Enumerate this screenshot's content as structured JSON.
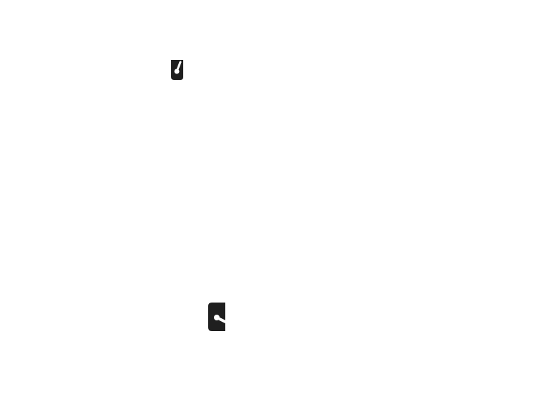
{
  "window": {
    "title": ""
  },
  "widgets": [
    {
      "icon": "gauge-needle-icon",
      "needle_orientation": "up-right"
    },
    {
      "icon": "gauge-needle-icon",
      "needle_orientation": "down-right"
    }
  ],
  "colors": {
    "background": "#ffffff",
    "chip_fill": "#1f1f1f",
    "needle": "#ffffff"
  }
}
